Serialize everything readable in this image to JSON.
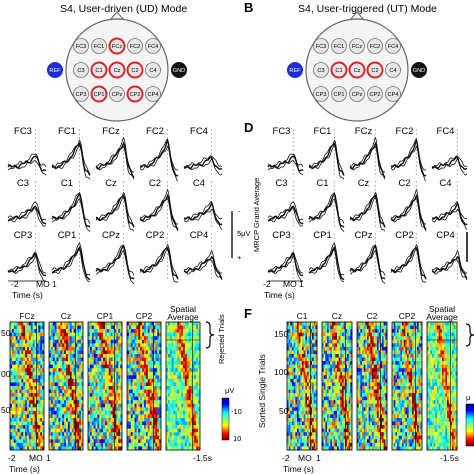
{
  "panels": {
    "A": {
      "letter": "",
      "title": "S4, User-driven (UD) Mode",
      "electrodes": [
        "FC3",
        "FC1",
        "FCz",
        "FC2",
        "FC4",
        "C3",
        "C1",
        "Cz",
        "C2",
        "C4",
        "CP3",
        "CP1",
        "CPz",
        "CP2",
        "CP4"
      ],
      "highlighted": [
        "FCz",
        "C1",
        "Cz",
        "C2",
        "CP1",
        "CP2"
      ],
      "ref_label": "REF",
      "gnd_label": "GND"
    },
    "B": {
      "letter": "B",
      "title": "S4, User-triggered (UT) Mode",
      "electrodes": [
        "FC3",
        "FC1",
        "FCz",
        "FC2",
        "FC4",
        "C3",
        "C1",
        "Cz",
        "C2",
        "C4",
        "CP3",
        "CP1",
        "CPz",
        "CP2",
        "CP4"
      ],
      "highlighted": [
        "C1",
        "Cz",
        "C2"
      ],
      "ref_label": "REF",
      "gnd_label": "GND"
    },
    "C": {
      "channels": [
        "FC3",
        "FC1",
        "FCz",
        "FC2",
        "FC4",
        "C3",
        "C1",
        "Cz",
        "C2",
        "C4",
        "CP3",
        "CP1",
        "CPz",
        "CP2",
        "CP4"
      ],
      "scale_label": "5μV",
      "minus": "-",
      "plus": "+",
      "xticks": [
        "-2",
        "MO",
        "1"
      ],
      "xlabel": "Time (s)"
    },
    "D": {
      "letter": "D",
      "ylabel": "MRCP Grand Average",
      "channels": [
        "FC3",
        "FC1",
        "FCz",
        "FC2",
        "FC4",
        "C3",
        "C1",
        "Cz",
        "C2",
        "C4",
        "CP3",
        "CP1",
        "CPz",
        "CP2",
        "CP4"
      ],
      "xticks": [
        "-2",
        "MO",
        "1"
      ],
      "xlabel": "Time (s)"
    },
    "E": {
      "panels": [
        "FCz",
        "Cz",
        "CP1",
        "CP2",
        "Spatial Average"
      ],
      "yticks": [
        "50",
        "00",
        "50"
      ],
      "rejected_label": "Rejected Trials",
      "xticks": [
        "-2",
        "MO",
        "1"
      ],
      "xlabel": "Time (s)",
      "avg_tick": "-1.5s",
      "colorbar_unit": "μV",
      "colorbar_ticks": [
        "-10",
        "10"
      ]
    },
    "F": {
      "letter": "F",
      "panels": [
        "C1",
        "Cz",
        "C2",
        "CP2",
        "Spatial Average"
      ],
      "ylabel": "Sorted Single Trials",
      "yticks": [
        "150",
        "100",
        "50"
      ],
      "xticks": [
        "-2",
        "MO",
        "1"
      ],
      "xlabel": "Time (s)",
      "avg_tick": "-1.5s",
      "colorbar_unit": "μ"
    }
  },
  "colors": {
    "highlight": "#d9262a",
    "ref": "#1e2bd6",
    "gnd": "#111111",
    "electrode_fill": "#e6e6e6",
    "head_fill": "#f4f4f4"
  }
}
